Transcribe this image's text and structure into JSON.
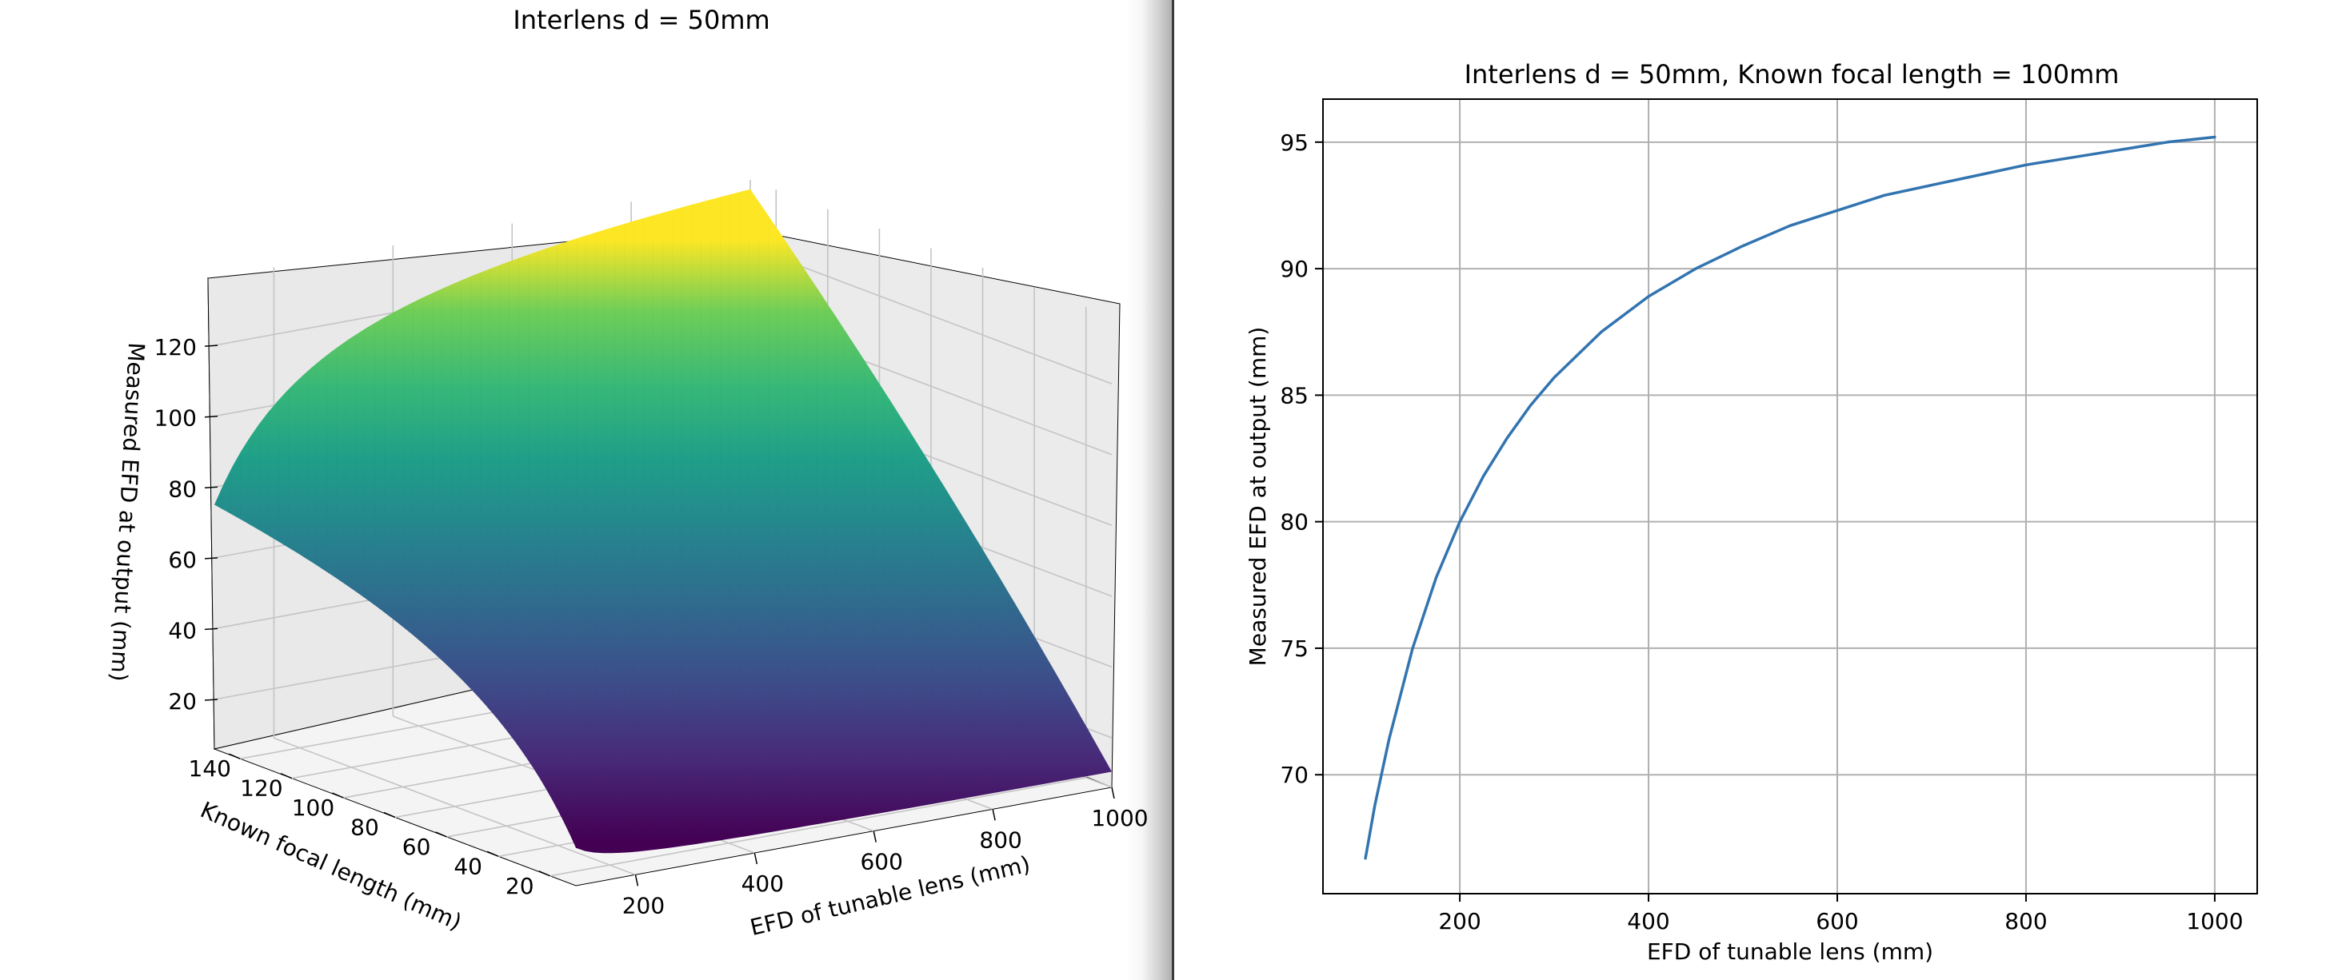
{
  "chart_data": [
    {
      "type": "surface",
      "title": "Interlens d = 50mm",
      "xlabel": "EFD of tunable lens (mm)",
      "ylabel": "Known focal length (mm)",
      "zlabel": "Measured EFD at output (mm)",
      "x_ticks": [
        200,
        400,
        600,
        800,
        1000
      ],
      "y_ticks": [
        20,
        40,
        60,
        80,
        100,
        120,
        140
      ],
      "z_ticks": [
        20,
        40,
        60,
        80,
        100,
        120
      ],
      "xlim": [
        100,
        1000
      ],
      "ylim": [
        10,
        150
      ],
      "zlim": [
        6,
        139
      ],
      "colormap": "viridis",
      "grid": true,
      "surface_corners": [
        {
          "x": 100,
          "y": 10,
          "z": 9.1
        },
        {
          "x": 1000,
          "y": 10,
          "z": 10.4
        },
        {
          "x": 1000,
          "y": 150,
          "z": 135.4
        },
        {
          "x": 100,
          "y": 150,
          "z": 75.0
        }
      ]
    },
    {
      "type": "line",
      "title": "Interlens d = 50mm, Known focal length = 100mm",
      "xlabel": "EFD of tunable lens (mm)",
      "ylabel": "Measured EFD at output (mm)",
      "xlim": [
        55,
        1045
      ],
      "ylim": [
        65.3,
        96.7
      ],
      "x_ticks": [
        200,
        400,
        600,
        800,
        1000
      ],
      "y_ticks": [
        70,
        75,
        80,
        85,
        90,
        95
      ],
      "grid": true,
      "series": [
        {
          "color": "#3274b0",
          "x": [
            100,
            110,
            125,
            150,
            175,
            200,
            225,
            250,
            275,
            300,
            350,
            400,
            450,
            500,
            550,
            600,
            650,
            700,
            750,
            800,
            850,
            900,
            950,
            1000
          ],
          "y": [
            66.7,
            68.8,
            71.4,
            75.0,
            77.8,
            80.0,
            81.8,
            83.3,
            84.6,
            85.7,
            87.5,
            88.9,
            90.0,
            90.9,
            91.7,
            92.3,
            92.9,
            93.3,
            93.7,
            94.1,
            94.4,
            94.7,
            95.0,
            95.2
          ]
        }
      ]
    }
  ]
}
